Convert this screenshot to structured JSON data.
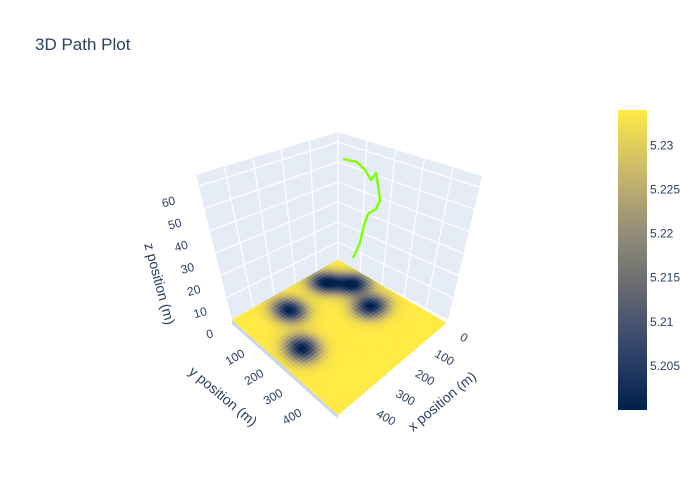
{
  "chart_data": {
    "type": "surface",
    "title": "3D Path Plot",
    "x_axis": {
      "label": "x position (m)",
      "ticks": [
        0,
        100,
        200,
        300,
        400
      ],
      "range": [
        0,
        500
      ]
    },
    "y_axis": {
      "label": "y position (m)",
      "ticks": [
        0,
        100,
        200,
        300,
        400
      ],
      "range": [
        0,
        500
      ]
    },
    "z_axis": {
      "label": "z position (m)",
      "ticks": [
        0,
        10,
        20,
        30,
        40,
        50,
        60
      ],
      "range": [
        0,
        65
      ]
    },
    "surface": {
      "name": "terrain",
      "z_value_range": [
        5.2,
        5.234
      ],
      "colorscale": [
        "#00204d",
        "#31446b",
        "#666970",
        "#958f78",
        "#cbba69",
        "#ffea46"
      ],
      "peaks": [
        {
          "x": 130,
          "y": 60,
          "z_min": 5.2
        },
        {
          "x": 60,
          "y": 120,
          "z_min": 5.2
        },
        {
          "x": 80,
          "y": 310,
          "z_min": 5.2
        },
        {
          "x": 250,
          "y": 100,
          "z_min": 5.2
        },
        {
          "x": 230,
          "y": 400,
          "z_min": 5.2
        }
      ]
    },
    "path": {
      "name": "path",
      "color": "#7fff00",
      "points": [
        {
          "x": 100,
          "y": 100,
          "z": 15
        },
        {
          "x": 100,
          "y": 100,
          "z": 25
        },
        {
          "x": 130,
          "y": 40,
          "z": 35
        },
        {
          "x": 155,
          "y": 25,
          "z": 48
        },
        {
          "x": 140,
          "y": 40,
          "z": 55
        },
        {
          "x": 110,
          "y": 60,
          "z": 58
        },
        {
          "x": 100,
          "y": 80,
          "z": 62
        }
      ]
    },
    "colorbar": {
      "ticks": [
        "5.205",
        "5.21",
        "5.215",
        "5.22",
        "5.225",
        "5.23"
      ],
      "tick_values": [
        5.205,
        5.21,
        5.215,
        5.22,
        5.225,
        5.23
      ],
      "range": [
        5.2,
        5.234
      ]
    }
  }
}
